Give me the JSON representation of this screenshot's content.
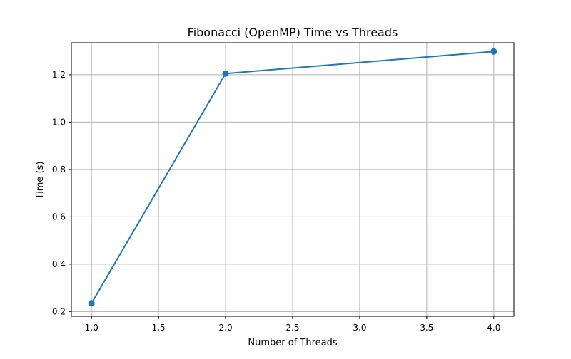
{
  "chart_data": {
    "type": "line",
    "title": "Fibonacci (OpenMP) Time vs Threads",
    "xlabel": "Number of Threads",
    "ylabel": "Time (s)",
    "xlim": [
      0.85,
      4.15
    ],
    "ylim": [
      0.18,
      1.335
    ],
    "xticks": [
      1.0,
      1.5,
      2.0,
      2.5,
      3.0,
      3.5,
      4.0
    ],
    "xtick_labels": [
      "1.0",
      "1.5",
      "2.0",
      "2.5",
      "3.0",
      "3.5",
      "4.0"
    ],
    "yticks": [
      0.2,
      0.4,
      0.6,
      0.8,
      1.0,
      1.2
    ],
    "ytick_labels": [
      "0.2",
      "0.4",
      "0.6",
      "0.8",
      "1.0",
      "1.2"
    ],
    "grid": true,
    "series": [
      {
        "x": [
          1,
          2,
          4
        ],
        "y": [
          0.235,
          1.205,
          1.298
        ],
        "color": "#1f77b4",
        "marker": "circle"
      }
    ]
  }
}
